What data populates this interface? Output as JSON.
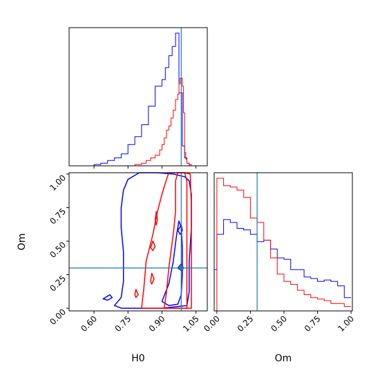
{
  "chart_data": {
    "type": "corner",
    "parameters": [
      "H0",
      "Om"
    ],
    "truth": {
      "H0": 0.985,
      "Om": 0.3
    },
    "colors": {
      "blue": "#0000ff",
      "red": "#ff0000",
      "truth": "#1f77b4"
    },
    "xlabels": {
      "h0": "H0",
      "om": "Om"
    },
    "ylabels": {
      "joint": "Om"
    },
    "h0_axis": {
      "range": [
        0.49,
        1.1
      ],
      "ticks": [
        "0.60",
        "0.75",
        "0.90",
        "1.05"
      ],
      "tick_values": [
        0.6,
        0.75,
        0.9,
        1.05
      ]
    },
    "om_axis": {
      "range": [
        -0.02,
        1.01
      ],
      "ticks": [
        "0.00",
        "0.25",
        "0.50",
        "0.75",
        "1.00"
      ],
      "tick_values": [
        0.0,
        0.25,
        0.5,
        0.75,
        1.0
      ]
    },
    "panels": [
      {
        "name": "H0 marginal",
        "type": "step-histogram",
        "series": [
          {
            "color": "blue",
            "edges": [
              0.49,
              0.6,
              0.63,
              0.66,
              0.69,
              0.72,
              0.75,
              0.78,
              0.81,
              0.84,
              0.87,
              0.9,
              0.915,
              0.93,
              0.945,
              0.96,
              0.975,
              0.99,
              1.0,
              1.01,
              1.02,
              1.03,
              1.05
            ],
            "values": [
              0,
              0.01,
              0.02,
              0.04,
              0.06,
              0.09,
              0.16,
              0.22,
              0.31,
              0.45,
              0.6,
              0.65,
              0.74,
              0.83,
              0.9,
              1.0,
              0.55,
              0.15,
              0.06,
              0.02,
              0,
              0
            ]
          },
          {
            "color": "red",
            "edges": [
              0.49,
              0.78,
              0.81,
              0.83,
              0.85,
              0.87,
              0.89,
              0.9,
              0.91,
              0.92,
              0.93,
              0.94,
              0.95,
              0.96,
              0.97,
              0.975,
              0.98,
              0.985,
              0.99,
              0.995,
              1.0,
              1.005,
              1.01,
              1.02,
              1.03,
              1.05
            ],
            "values": [
              0,
              0.01,
              0.02,
              0.04,
              0.06,
              0.08,
              0.12,
              0.16,
              0.21,
              0.27,
              0.3,
              0.36,
              0.42,
              0.5,
              0.54,
              0.62,
              0.66,
              0.66,
              0.6,
              0.4,
              0.1,
              0.05,
              0.02,
              0.01,
              0
            ]
          }
        ]
      },
      {
        "name": "H0-Om joint",
        "type": "contour",
        "series": [
          {
            "color": "blue",
            "contours": [
              [
                [
                  0.69,
                  0.02
                ],
                [
                  0.72,
                  0.08
                ],
                [
                  0.73,
                  0.2
                ],
                [
                  0.73,
                  0.42
                ],
                [
                  0.72,
                  0.6
                ],
                [
                  0.72,
                  0.75
                ],
                [
                  0.73,
                  0.88
                ],
                [
                  0.75,
                  0.96
                ],
                [
                  0.8,
                  1.01
                ],
                [
                  0.88,
                  1.01
                ],
                [
                  0.95,
                  1.0
                ],
                [
                  1.0,
                  0.98
                ],
                [
                  1.02,
                  0.95
                ],
                [
                  1.03,
                  0.85
                ],
                [
                  1.03,
                  0.6
                ],
                [
                  1.02,
                  0.35
                ],
                [
                  1.02,
                  0.12
                ],
                [
                  1.01,
                  0.02
                ],
                [
                  0.9,
                  0.0
                ],
                [
                  0.8,
                  0.0
                ],
                [
                  0.72,
                  0.0
                ]
              ],
              [
                [
                  0.9,
                  0.05
                ],
                [
                  0.93,
                  0.18
                ],
                [
                  0.95,
                  0.35
                ],
                [
                  0.965,
                  0.55
                ],
                [
                  0.975,
                  0.65
                ],
                [
                  0.985,
                  0.6
                ],
                [
                  0.99,
                  0.45
                ],
                [
                  0.99,
                  0.25
                ],
                [
                  0.985,
                  0.1
                ],
                [
                  0.97,
                  0.03
                ],
                [
                  0.93,
                  0.02
                ]
              ],
              [
                [
                  0.97,
                  0.58
                ],
                [
                  0.985,
                  0.62
                ],
                [
                  0.99,
                  0.58
                ],
                [
                  0.98,
                  0.55
                ]
              ],
              [
                [
                  0.97,
                  0.3
                ],
                [
                  0.985,
                  0.33
                ],
                [
                  0.995,
                  0.3
                ],
                [
                  0.985,
                  0.28
                ]
              ],
              [
                [
                  0.64,
                  0.07
                ],
                [
                  0.67,
                  0.1
                ],
                [
                  0.68,
                  0.08
                ],
                [
                  0.66,
                  0.06
                ]
              ]
            ]
          },
          {
            "color": "red",
            "contours": [
              [
                [
                  0.81,
                  0.0
                ],
                [
                  0.82,
                  0.15
                ],
                [
                  0.83,
                  0.35
                ],
                [
                  0.86,
                  0.55
                ],
                [
                  0.88,
                  0.72
                ],
                [
                  0.9,
                  0.85
                ],
                [
                  0.92,
                  0.96
                ],
                [
                  0.93,
                  1.01
                ],
                [
                  0.97,
                  1.01
                ],
                [
                  1.0,
                  1.01
                ],
                [
                  1.025,
                  1.0
                ],
                [
                  1.03,
                  0.75
                ],
                [
                  1.03,
                  0.4
                ],
                [
                  1.03,
                  0.0
                ]
              ],
              [
                [
                  0.91,
                  0.0
                ],
                [
                  0.92,
                  0.12
                ],
                [
                  0.93,
                  0.3
                ],
                [
                  0.95,
                  0.55
                ],
                [
                  0.96,
                  0.72
                ],
                [
                  0.96,
                  0.95
                ],
                [
                  0.97,
                  1.01
                ],
                [
                  1.0,
                  1.01
                ],
                [
                  1.01,
                  0.95
                ],
                [
                  1.01,
                  0.65
                ],
                [
                  1.01,
                  0.3
                ],
                [
                  1.01,
                  0.0
                ]
              ],
              [
                [
                  0.78,
                  0.1
                ],
                [
                  0.785,
                  0.14
                ],
                [
                  0.795,
                  0.1
                ],
                [
                  0.785,
                  0.08
                ]
              ],
              [
                [
                  0.85,
                  0.45
                ],
                [
                  0.86,
                  0.5
                ],
                [
                  0.87,
                  0.46
                ],
                [
                  0.86,
                  0.43
                ]
              ],
              [
                [
                  0.87,
                  0.66
                ],
                [
                  0.875,
                  0.72
                ],
                [
                  0.88,
                  0.66
                ],
                [
                  0.875,
                  0.62
                ]
              ],
              [
                [
                  0.85,
                  0.2
                ],
                [
                  0.855,
                  0.26
                ],
                [
                  0.865,
                  0.22
                ],
                [
                  0.855,
                  0.18
                ]
              ]
            ]
          }
        ]
      },
      {
        "name": "Om marginal",
        "type": "step-histogram",
        "series": [
          {
            "color": "blue",
            "edges": [
              -0.02,
              0.0,
              0.05,
              0.1,
              0.15,
              0.2,
              0.25,
              0.3,
              0.35,
              0.4,
              0.45,
              0.5,
              0.55,
              0.6,
              0.65,
              0.7,
              0.75,
              0.8,
              0.85,
              0.9,
              0.95,
              1.0
            ],
            "values": [
              0.28,
              0.52,
              0.62,
              0.6,
              0.56,
              0.55,
              0.52,
              0.47,
              0.48,
              0.42,
              0.36,
              0.35,
              0.28,
              0.28,
              0.23,
              0.22,
              0.2,
              0.21,
              0.2,
              0.17,
              0.09
            ]
          },
          {
            "color": "red",
            "edges": [
              -0.02,
              0.0,
              0.05,
              0.1,
              0.15,
              0.2,
              0.25,
              0.3,
              0.35,
              0.4,
              0.45,
              0.5,
              0.55,
              0.6,
              0.65,
              0.7,
              0.75,
              0.8,
              0.85,
              0.9,
              0.95,
              1.0
            ],
            "values": [
              0,
              0.9,
              0.85,
              0.84,
              0.82,
              0.77,
              0.63,
              0.6,
              0.48,
              0.36,
              0.25,
              0.2,
              0.18,
              0.14,
              0.11,
              0.09,
              0.08,
              0.07,
              0.05,
              0.05,
              0.03
            ]
          }
        ]
      }
    ]
  }
}
